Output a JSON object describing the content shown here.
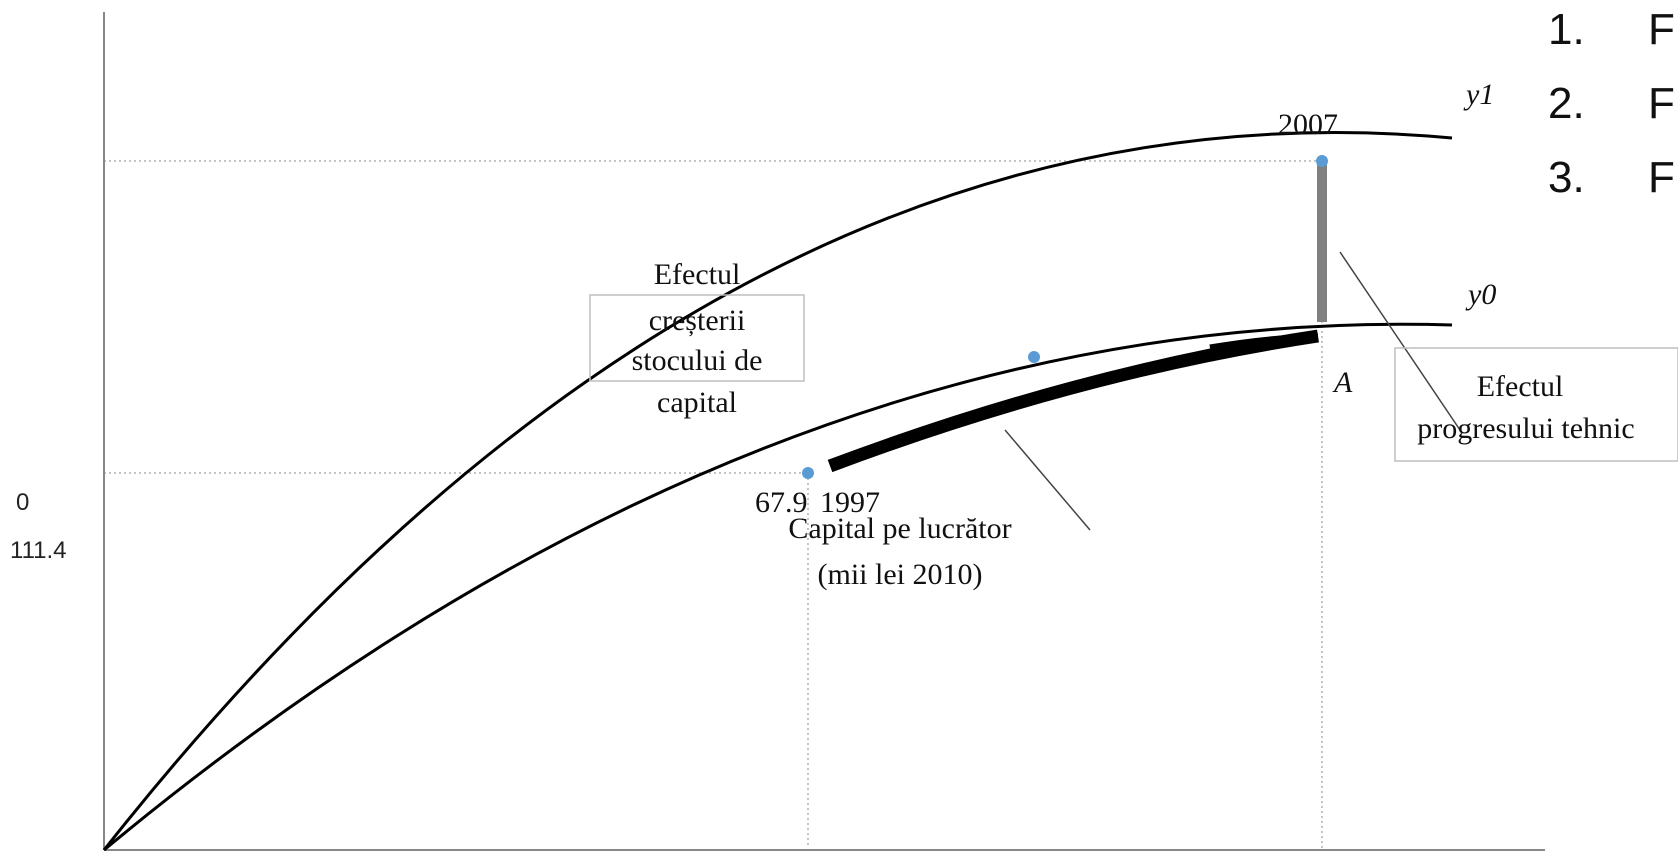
{
  "chart_data": {
    "type": "line",
    "title": "",
    "xlabel": "Capital pe lucrător\n(mii lei 2010)",
    "ylabel": "",
    "y_ticks_shown": [
      "0",
      "111.4"
    ],
    "series": [
      {
        "name": "y1",
        "x": [
          0,
          25,
          50,
          75,
          100,
          125,
          150,
          160
        ],
        "y": [
          0,
          38,
          70,
          95,
          113,
          125,
          132,
          134
        ]
      },
      {
        "name": "y0",
        "x": [
          0,
          25,
          50,
          75,
          100,
          125,
          150,
          160
        ],
        "y": [
          0,
          26,
          48,
          67,
          82,
          94,
          102,
          105
        ]
      }
    ],
    "points": [
      {
        "label": "1997",
        "value_label": "67.9"
      },
      {
        "label": "2007",
        "value_label": ""
      },
      {
        "label": "A",
        "value_label": ""
      }
    ],
    "annotations": [
      "Efectul creșterii stocului de capital",
      "Efectul progresului tehnic"
    ],
    "grid": "dotted reference lines",
    "legend": "none"
  },
  "labels": {
    "y1": "y1",
    "y0": "y0",
    "year_2007": "2007",
    "point_A": "A",
    "value_67_9": "67.9",
    "year_1997": "1997",
    "tick_0": "0",
    "tick_111_4": "111.4",
    "xlabel_line1": "Capital pe lucrător",
    "xlabel_line2": "(mii lei 2010)",
    "box1_line1": "Efectul",
    "box1_line2": "creșterii",
    "box1_line3": "stocului de",
    "box1_line4": "capital",
    "box2_line1": "Efectul",
    "box2_line2": "progresului tehnic"
  },
  "list": {
    "items": [
      {
        "number": "1.",
        "text": "F"
      },
      {
        "number": "2.",
        "text": "F"
      },
      {
        "number": "3.",
        "text": "F"
      }
    ]
  },
  "colors": {
    "curve": "#000000",
    "tech_bar": "#808080",
    "point": "#5b9bd5",
    "grid": "#b0b0b0",
    "box_border": "#bfbfbf"
  }
}
